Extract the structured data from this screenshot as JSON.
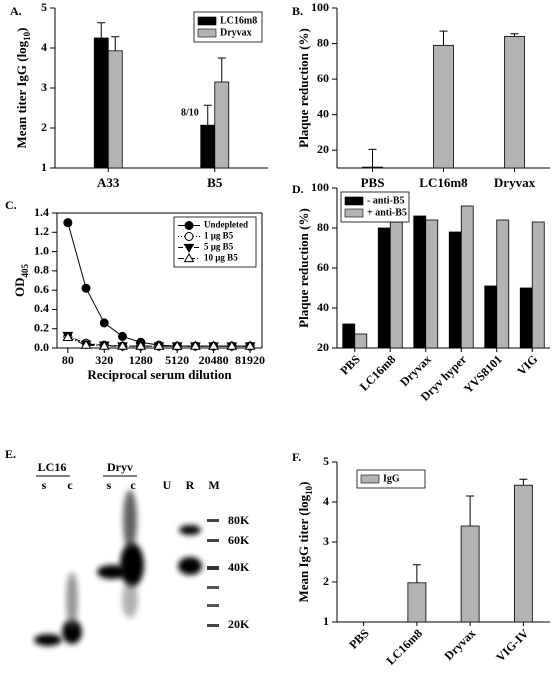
{
  "chart_data": [
    {
      "type": "bar",
      "panel": "A.",
      "ylabel": [
        "Mean titer IgG (log",
        "10",
        ")"
      ],
      "categories": [
        "A33",
        "B5"
      ],
      "ylim": [
        1,
        5
      ],
      "yticks": [
        1,
        2,
        3,
        4,
        5
      ],
      "legend": "upper right",
      "annotation": "8/10",
      "series": [
        {
          "name": "LC16m8",
          "color": "#000000",
          "values": [
            4.25,
            2.07
          ],
          "errors": [
            0.38,
            0.5
          ]
        },
        {
          "name": "Dryvax",
          "color": "#b3b3b3",
          "values": [
            3.93,
            3.15
          ],
          "errors": [
            0.35,
            0.6
          ]
        }
      ]
    },
    {
      "type": "bar",
      "panel": "B.",
      "ylabel": [
        "Plaque reduction (%)"
      ],
      "categories": [
        "PBS",
        "LC16m8",
        "Dryvax"
      ],
      "ylim": [
        10,
        100
      ],
      "yticks": [
        20,
        40,
        60,
        80,
        100
      ],
      "series": [
        {
          "color": "#b3b3b3",
          "values": [
            10.5,
            79,
            84
          ],
          "errors": [
            10,
            8,
            1.5
          ]
        }
      ]
    },
    {
      "type": "line",
      "panel": "C.",
      "ylabel": [
        "OD",
        "405"
      ],
      "xlabel": "Reciprocal serum dilution",
      "xscale": "log",
      "x": [
        80,
        160,
        320,
        640,
        1280,
        2560,
        5120,
        10240,
        20480,
        40960,
        81920
      ],
      "xlim": [
        53,
        129000
      ],
      "xticks": [
        80,
        320,
        1280,
        5120,
        20480,
        81920
      ],
      "ylim": [
        0,
        1.4
      ],
      "yticks": [
        {
          "value": 0,
          "label": "0.0"
        },
        0.2,
        0.4,
        0.6,
        0.8,
        {
          "value": 1,
          "label": "1.0"
        },
        1.2,
        1.4
      ],
      "legend": "upper right",
      "series": [
        {
          "name": "Undepleted",
          "color": "#000000",
          "linestyle": "solid",
          "marker": "circle-filled",
          "values": [
            1.3,
            0.62,
            0.26,
            0.12,
            0.06,
            0.03,
            0.02,
            0.02,
            0.02,
            0.02,
            0.02
          ]
        },
        {
          "name": "1 µg B5",
          "color": "#000000",
          "linestyle": "dotted",
          "marker": "circle-open",
          "values": [
            0.12,
            0.05,
            0.03,
            0.02,
            0.02,
            0.02,
            0.02,
            0.02,
            0.02,
            0.02,
            0.02
          ]
        },
        {
          "name": "5 µg B5",
          "color": "#000000",
          "linestyle": "dashed",
          "marker": "triangle-down-filled",
          "values": [
            0.13,
            0.04,
            0.03,
            0.02,
            0.02,
            0.02,
            0.02,
            0.02,
            0.02,
            0.02,
            0.02
          ]
        },
        {
          "name": "10 µg B5",
          "color": "#000000",
          "linestyle": "dashdot",
          "marker": "triangle-up-open",
          "values": [
            0.11,
            0.03,
            0.02,
            0.02,
            0.02,
            0.02,
            0.02,
            0.02,
            0.02,
            0.02,
            0.02
          ]
        }
      ]
    },
    {
      "type": "bar",
      "panel": "D.",
      "ylabel": [
        "Plaque reduction (%)"
      ],
      "categories": [
        "PBS",
        "LC16m8",
        "Dryvax",
        "Dryv hyper",
        "YVS8101",
        "VIG"
      ],
      "ylim": [
        20,
        100
      ],
      "yticks": [
        20,
        40,
        60,
        80,
        100
      ],
      "legend": "upper left",
      "series": [
        {
          "name": "- anti-B5",
          "color": "#000000",
          "values": [
            32,
            80,
            86,
            78,
            51,
            50
          ]
        },
        {
          "name": "+ anti-B5",
          "color": "#b3b3b3",
          "values": [
            27,
            83,
            84,
            91,
            84,
            83
          ]
        }
      ]
    },
    {
      "type": "bar",
      "panel": "F.",
      "ylabel": [
        "Mean IgG titer (log",
        "10",
        ")"
      ],
      "categories": [
        "PBS",
        "LC16m8",
        "Dryvax",
        "VIG-IV"
      ],
      "ylim": [
        1,
        5
      ],
      "yticks": [
        1,
        2,
        3,
        4,
        5
      ],
      "legend": "upper left",
      "series": [
        {
          "name": "IgG",
          "color": "#b3b3b3",
          "values": [
            1,
            1.98,
            3.4,
            4.42
          ],
          "errors": [
            null,
            0.45,
            0.75,
            0.15
          ]
        }
      ]
    }
  ],
  "gel": {
    "panel": "E.",
    "groups": [
      "LC16",
      "Dryv"
    ],
    "lanes": [
      "s",
      "c",
      "s",
      "c",
      "U",
      "R",
      "M"
    ],
    "markers": [
      "80K",
      "60K",
      "40K",
      "20K"
    ]
  }
}
